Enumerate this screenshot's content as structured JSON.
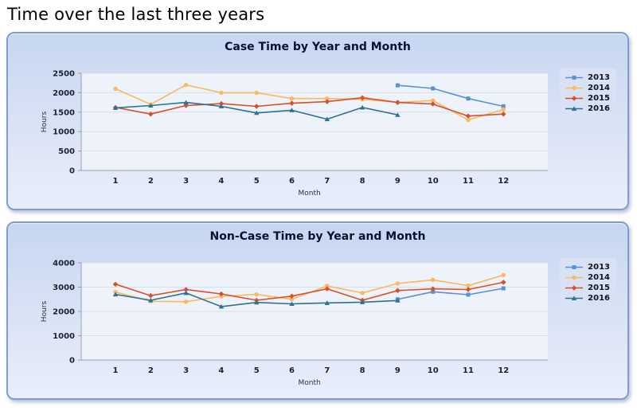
{
  "page": {
    "title": "Time over the last three years"
  },
  "chart_data": [
    {
      "type": "line",
      "title": "Case Time by Year and Month",
      "xlabel": "Month",
      "ylabel": "Hours",
      "ylim": [
        0,
        2500
      ],
      "ytick_step": 500,
      "grid": true,
      "legend_position": "right",
      "categories": [
        "1",
        "2",
        "3",
        "4",
        "5",
        "6",
        "7",
        "8",
        "9",
        "10",
        "11",
        "12"
      ],
      "series": [
        {
          "name": "2013",
          "color": "#5b91d0",
          "marker": "square",
          "values": [
            null,
            null,
            null,
            null,
            null,
            null,
            null,
            null,
            2190,
            2110,
            1850,
            1650
          ]
        },
        {
          "name": "2014",
          "color": "#f8b95f",
          "marker": "circle",
          "values": [
            2100,
            1700,
            2200,
            2000,
            2000,
            1850,
            1850,
            1830,
            1750,
            1800,
            1300,
            1570
          ]
        },
        {
          "name": "2015",
          "color": "#d5512a",
          "marker": "diamond",
          "values": [
            1620,
            1450,
            1670,
            1720,
            1650,
            1730,
            1770,
            1870,
            1750,
            1710,
            1400,
            1450
          ]
        },
        {
          "name": "2016",
          "color": "#2d7292",
          "marker": "triangle",
          "values": [
            1610,
            1670,
            1750,
            1650,
            1480,
            1550,
            1320,
            1620,
            1430,
            null,
            null,
            null
          ]
        }
      ]
    },
    {
      "type": "line",
      "title": "Non-Case Time by Year and Month",
      "xlabel": "Month",
      "ylabel": "Hours",
      "ylim": [
        0,
        4000
      ],
      "ytick_step": 1000,
      "grid": true,
      "legend_position": "right",
      "categories": [
        "1",
        "2",
        "3",
        "4",
        "5",
        "6",
        "7",
        "8",
        "9",
        "10",
        "11",
        "12"
      ],
      "series": [
        {
          "name": "2013",
          "color": "#5b91d0",
          "marker": "square",
          "values": [
            null,
            null,
            null,
            null,
            null,
            null,
            null,
            null,
            2500,
            2810,
            2690,
            2950
          ]
        },
        {
          "name": "2014",
          "color": "#f8b95f",
          "marker": "circle",
          "values": [
            2800,
            2420,
            2400,
            2620,
            2700,
            2500,
            3050,
            2760,
            3150,
            3300,
            3060,
            3500
          ]
        },
        {
          "name": "2015",
          "color": "#d5512a",
          "marker": "diamond",
          "values": [
            3120,
            2650,
            2900,
            2720,
            2460,
            2630,
            2930,
            2460,
            2860,
            2930,
            2900,
            3200
          ]
        },
        {
          "name": "2016",
          "color": "#2d7292",
          "marker": "triangle",
          "values": [
            2700,
            2460,
            2760,
            2200,
            2370,
            2310,
            2350,
            2380,
            2450,
            null,
            null,
            null
          ]
        }
      ]
    }
  ]
}
